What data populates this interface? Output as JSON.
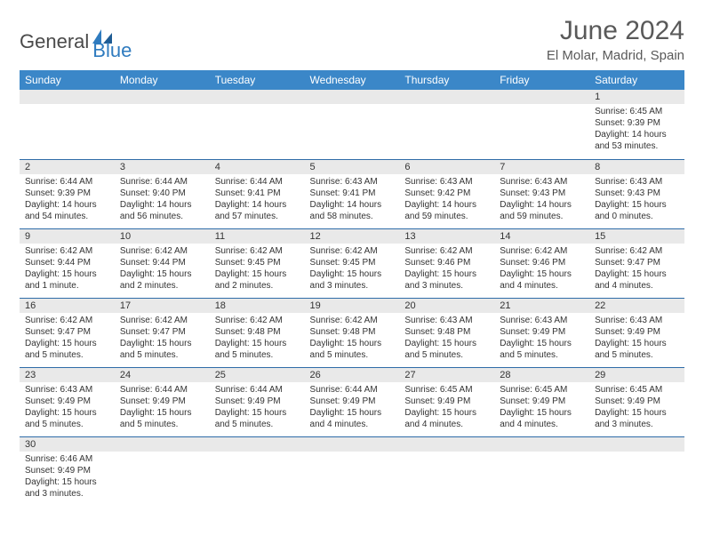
{
  "logo": {
    "text1": "General",
    "text2": "Blue"
  },
  "title": "June 2024",
  "subtitle": "El Molar, Madrid, Spain",
  "colors": {
    "header_bg": "#3b87c8",
    "header_fg": "#ffffff",
    "row_divider": "#2f6ca8",
    "daynum_bg": "#e9e9e9",
    "title_color": "#595959",
    "logo_gray": "#4a4a4a",
    "logo_blue": "#2f7bbf"
  },
  "weekdays": [
    "Sunday",
    "Monday",
    "Tuesday",
    "Wednesday",
    "Thursday",
    "Friday",
    "Saturday"
  ],
  "weeks": [
    [
      {
        "day": "",
        "sunrise": "",
        "sunset": "",
        "daylight": ""
      },
      {
        "day": "",
        "sunrise": "",
        "sunset": "",
        "daylight": ""
      },
      {
        "day": "",
        "sunrise": "",
        "sunset": "",
        "daylight": ""
      },
      {
        "day": "",
        "sunrise": "",
        "sunset": "",
        "daylight": ""
      },
      {
        "day": "",
        "sunrise": "",
        "sunset": "",
        "daylight": ""
      },
      {
        "day": "",
        "sunrise": "",
        "sunset": "",
        "daylight": ""
      },
      {
        "day": "1",
        "sunrise": "Sunrise: 6:45 AM",
        "sunset": "Sunset: 9:39 PM",
        "daylight": "Daylight: 14 hours and 53 minutes."
      }
    ],
    [
      {
        "day": "2",
        "sunrise": "Sunrise: 6:44 AM",
        "sunset": "Sunset: 9:39 PM",
        "daylight": "Daylight: 14 hours and 54 minutes."
      },
      {
        "day": "3",
        "sunrise": "Sunrise: 6:44 AM",
        "sunset": "Sunset: 9:40 PM",
        "daylight": "Daylight: 14 hours and 56 minutes."
      },
      {
        "day": "4",
        "sunrise": "Sunrise: 6:44 AM",
        "sunset": "Sunset: 9:41 PM",
        "daylight": "Daylight: 14 hours and 57 minutes."
      },
      {
        "day": "5",
        "sunrise": "Sunrise: 6:43 AM",
        "sunset": "Sunset: 9:41 PM",
        "daylight": "Daylight: 14 hours and 58 minutes."
      },
      {
        "day": "6",
        "sunrise": "Sunrise: 6:43 AM",
        "sunset": "Sunset: 9:42 PM",
        "daylight": "Daylight: 14 hours and 59 minutes."
      },
      {
        "day": "7",
        "sunrise": "Sunrise: 6:43 AM",
        "sunset": "Sunset: 9:43 PM",
        "daylight": "Daylight: 14 hours and 59 minutes."
      },
      {
        "day": "8",
        "sunrise": "Sunrise: 6:43 AM",
        "sunset": "Sunset: 9:43 PM",
        "daylight": "Daylight: 15 hours and 0 minutes."
      }
    ],
    [
      {
        "day": "9",
        "sunrise": "Sunrise: 6:42 AM",
        "sunset": "Sunset: 9:44 PM",
        "daylight": "Daylight: 15 hours and 1 minute."
      },
      {
        "day": "10",
        "sunrise": "Sunrise: 6:42 AM",
        "sunset": "Sunset: 9:44 PM",
        "daylight": "Daylight: 15 hours and 2 minutes."
      },
      {
        "day": "11",
        "sunrise": "Sunrise: 6:42 AM",
        "sunset": "Sunset: 9:45 PM",
        "daylight": "Daylight: 15 hours and 2 minutes."
      },
      {
        "day": "12",
        "sunrise": "Sunrise: 6:42 AM",
        "sunset": "Sunset: 9:45 PM",
        "daylight": "Daylight: 15 hours and 3 minutes."
      },
      {
        "day": "13",
        "sunrise": "Sunrise: 6:42 AM",
        "sunset": "Sunset: 9:46 PM",
        "daylight": "Daylight: 15 hours and 3 minutes."
      },
      {
        "day": "14",
        "sunrise": "Sunrise: 6:42 AM",
        "sunset": "Sunset: 9:46 PM",
        "daylight": "Daylight: 15 hours and 4 minutes."
      },
      {
        "day": "15",
        "sunrise": "Sunrise: 6:42 AM",
        "sunset": "Sunset: 9:47 PM",
        "daylight": "Daylight: 15 hours and 4 minutes."
      }
    ],
    [
      {
        "day": "16",
        "sunrise": "Sunrise: 6:42 AM",
        "sunset": "Sunset: 9:47 PM",
        "daylight": "Daylight: 15 hours and 5 minutes."
      },
      {
        "day": "17",
        "sunrise": "Sunrise: 6:42 AM",
        "sunset": "Sunset: 9:47 PM",
        "daylight": "Daylight: 15 hours and 5 minutes."
      },
      {
        "day": "18",
        "sunrise": "Sunrise: 6:42 AM",
        "sunset": "Sunset: 9:48 PM",
        "daylight": "Daylight: 15 hours and 5 minutes."
      },
      {
        "day": "19",
        "sunrise": "Sunrise: 6:42 AM",
        "sunset": "Sunset: 9:48 PM",
        "daylight": "Daylight: 15 hours and 5 minutes."
      },
      {
        "day": "20",
        "sunrise": "Sunrise: 6:43 AM",
        "sunset": "Sunset: 9:48 PM",
        "daylight": "Daylight: 15 hours and 5 minutes."
      },
      {
        "day": "21",
        "sunrise": "Sunrise: 6:43 AM",
        "sunset": "Sunset: 9:49 PM",
        "daylight": "Daylight: 15 hours and 5 minutes."
      },
      {
        "day": "22",
        "sunrise": "Sunrise: 6:43 AM",
        "sunset": "Sunset: 9:49 PM",
        "daylight": "Daylight: 15 hours and 5 minutes."
      }
    ],
    [
      {
        "day": "23",
        "sunrise": "Sunrise: 6:43 AM",
        "sunset": "Sunset: 9:49 PM",
        "daylight": "Daylight: 15 hours and 5 minutes."
      },
      {
        "day": "24",
        "sunrise": "Sunrise: 6:44 AM",
        "sunset": "Sunset: 9:49 PM",
        "daylight": "Daylight: 15 hours and 5 minutes."
      },
      {
        "day": "25",
        "sunrise": "Sunrise: 6:44 AM",
        "sunset": "Sunset: 9:49 PM",
        "daylight": "Daylight: 15 hours and 5 minutes."
      },
      {
        "day": "26",
        "sunrise": "Sunrise: 6:44 AM",
        "sunset": "Sunset: 9:49 PM",
        "daylight": "Daylight: 15 hours and 4 minutes."
      },
      {
        "day": "27",
        "sunrise": "Sunrise: 6:45 AM",
        "sunset": "Sunset: 9:49 PM",
        "daylight": "Daylight: 15 hours and 4 minutes."
      },
      {
        "day": "28",
        "sunrise": "Sunrise: 6:45 AM",
        "sunset": "Sunset: 9:49 PM",
        "daylight": "Daylight: 15 hours and 4 minutes."
      },
      {
        "day": "29",
        "sunrise": "Sunrise: 6:45 AM",
        "sunset": "Sunset: 9:49 PM",
        "daylight": "Daylight: 15 hours and 3 minutes."
      }
    ],
    [
      {
        "day": "30",
        "sunrise": "Sunrise: 6:46 AM",
        "sunset": "Sunset: 9:49 PM",
        "daylight": "Daylight: 15 hours and 3 minutes."
      },
      {
        "day": "",
        "sunrise": "",
        "sunset": "",
        "daylight": ""
      },
      {
        "day": "",
        "sunrise": "",
        "sunset": "",
        "daylight": ""
      },
      {
        "day": "",
        "sunrise": "",
        "sunset": "",
        "daylight": ""
      },
      {
        "day": "",
        "sunrise": "",
        "sunset": "",
        "daylight": ""
      },
      {
        "day": "",
        "sunrise": "",
        "sunset": "",
        "daylight": ""
      },
      {
        "day": "",
        "sunrise": "",
        "sunset": "",
        "daylight": ""
      }
    ]
  ]
}
